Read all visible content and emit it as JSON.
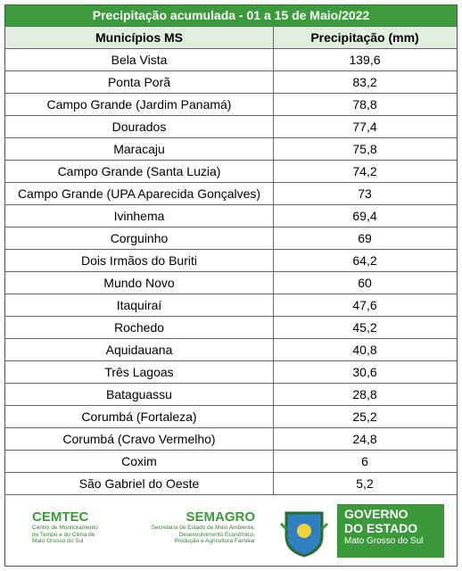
{
  "title": "Precipitação acumulada - 01 a 15 de Maio/2022",
  "table": {
    "header": [
      "Municípios MS",
      "Precipitação (mm)"
    ],
    "rows": [
      [
        "Bela Vista",
        "139,6"
      ],
      [
        "Ponta Porã",
        "83,2"
      ],
      [
        "Campo Grande (Jardim Panamá)",
        "78,8"
      ],
      [
        "Dourados",
        "77,4"
      ],
      [
        "Maracaju",
        "75,8"
      ],
      [
        "Campo Grande (Santa Luzia)",
        "74,2"
      ],
      [
        "Campo Grande (UPA Aparecida Gonçalves)",
        "73"
      ],
      [
        "Ivinhema",
        "69,4"
      ],
      [
        "Corguinho",
        "69"
      ],
      [
        "Dois Irmãos do Buriti",
        "64,2"
      ],
      [
        "Mundo Novo",
        "60"
      ],
      [
        "Itaquiraí",
        "47,6"
      ],
      [
        "Rochedo",
        "45,2"
      ],
      [
        "Aquidauana",
        "40,8"
      ],
      [
        "Três Lagoas",
        "30,6"
      ],
      [
        "Bataguassu",
        "28,8"
      ],
      [
        "Corumbá (Fortaleza)",
        "25,2"
      ],
      [
        "Corumbá (Cravo Vermelho)",
        "24,8"
      ],
      [
        "Coxim",
        "6"
      ],
      [
        "São Gabriel do Oeste",
        "5,2"
      ]
    ]
  },
  "footer": {
    "cemtec": {
      "name": "CEMTEC",
      "lines": [
        "Centro de Monitoramento",
        "do Tempo e do Clima de",
        "Mato Grosso do Sul"
      ]
    },
    "semagro": {
      "name": "SEMAGRO",
      "lines": [
        "Secretaria de Estado de Meio Ambiente,",
        "Desenvolvimento Econômico,",
        "Produção e Agricultura Familiar"
      ]
    },
    "governo": {
      "lines": [
        "GOVERNO",
        "DO ESTADO"
      ],
      "state": "Mato Grosso do Sul"
    }
  }
}
